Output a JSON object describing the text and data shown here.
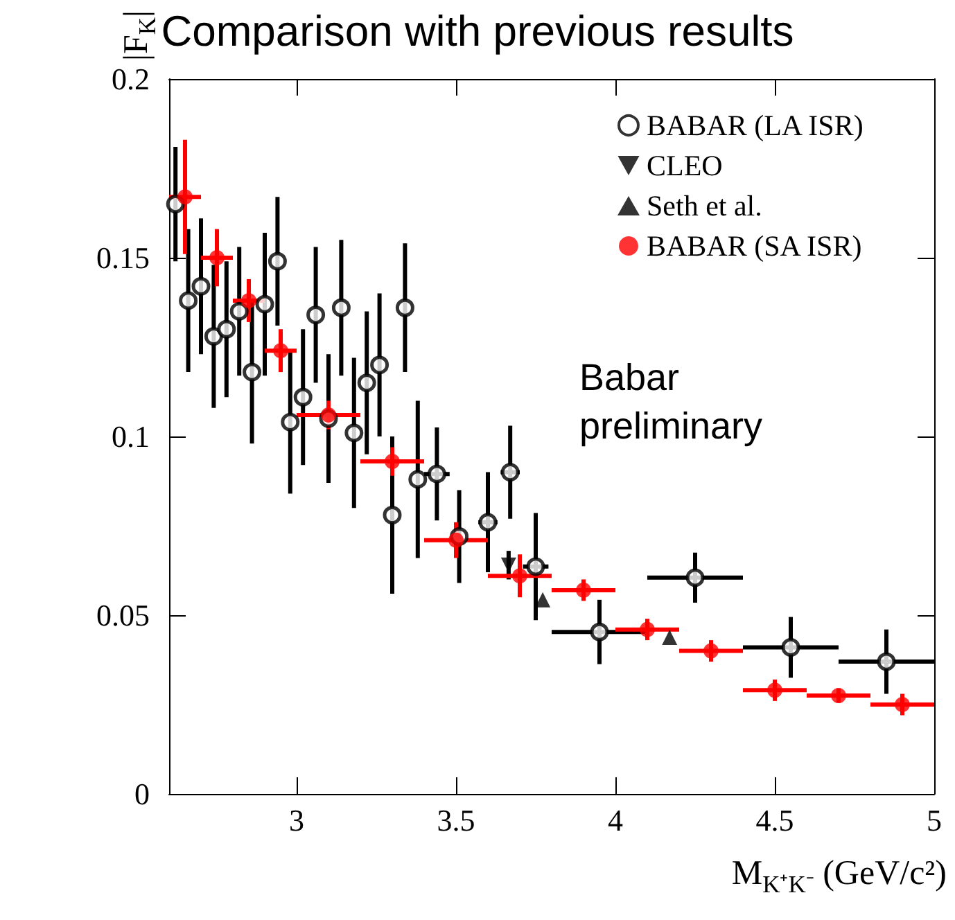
{
  "chart_data": {
    "type": "scatter",
    "title": "Comparison with previous results",
    "xlabel": "M$_{K⁺K⁻}$ (GeV/c²)",
    "ylabel": "|F$_{K}$|",
    "annotations": [
      "Babar preliminary"
    ],
    "xlim": [
      2.6,
      5
    ],
    "xticks": [
      3,
      3.5,
      4,
      4.5,
      5
    ],
    "ylim": [
      0,
      0.2
    ],
    "yticks": [
      0,
      0.05,
      0.1,
      0.15,
      0.2
    ],
    "grid": false,
    "legend": "top right",
    "series": [
      {
        "name": "BABAR (LA ISR)",
        "color": "#000000",
        "marker": "circle-open",
        "x": [
          2.62,
          2.66,
          2.7,
          2.74,
          2.78,
          2.82,
          2.86,
          2.9,
          2.94,
          2.98,
          3.02,
          3.06,
          3.1,
          3.14,
          3.18,
          3.22,
          3.26,
          3.3,
          3.34,
          3.38,
          3.44,
          3.51,
          3.6,
          3.67,
          3.75,
          3.95,
          4.25,
          4.55,
          4.85
        ],
        "values": [
          0.165,
          0.138,
          0.142,
          0.128,
          0.13,
          0.135,
          0.118,
          0.137,
          0.149,
          0.104,
          0.111,
          0.134,
          0.105,
          0.136,
          0.101,
          0.115,
          0.12,
          0.078,
          0.136,
          0.088,
          0.0895,
          0.072,
          0.076,
          0.09,
          0.0636,
          0.0453,
          0.0605,
          0.041,
          0.037
        ],
        "errors": [
          0.016,
          0.02,
          0.019,
          0.02,
          0.019,
          0.018,
          0.02,
          0.02,
          0.018,
          0.02,
          0.019,
          0.019,
          0.018,
          0.019,
          0.021,
          0.02,
          0.02,
          0.022,
          0.018,
          0.022,
          0.013,
          0.013,
          0.014,
          0.013,
          0.015,
          0.009,
          0.007,
          0.0085,
          0.009
        ],
        "xerrors": [
          null,
          null,
          null,
          null,
          null,
          null,
          null,
          null,
          null,
          null,
          null,
          null,
          null,
          null,
          null,
          null,
          null,
          null,
          null,
          null,
          0.04,
          null,
          0.03,
          0.03,
          0.04,
          0.15,
          0.15,
          0.15,
          0.15
        ]
      },
      {
        "name": "CLEO",
        "color": "#000000",
        "marker": "triangle-down",
        "x": [
          3.665
        ],
        "values": [
          0.064
        ],
        "errors": [
          0.004
        ]
      },
      {
        "name": "Seth et al.",
        "color": "#000000",
        "marker": "triangle",
        "x": [
          3.772,
          4.17
        ],
        "values": [
          0.0543,
          0.0438
        ]
      },
      {
        "name": "BABAR (SA ISR)",
        "color": "#ff0000",
        "marker": "circle",
        "x": [
          2.65,
          2.75,
          2.85,
          2.95,
          3.1,
          3.3,
          3.5,
          3.7,
          3.9,
          4.1,
          4.3,
          4.5,
          4.7,
          4.9
        ],
        "values": [
          0.167,
          0.15,
          0.138,
          0.124,
          0.106,
          0.093,
          0.071,
          0.061,
          0.057,
          0.046,
          0.04,
          0.029,
          0.0275,
          0.025
        ],
        "errors": [
          0.016,
          0.008,
          0.006,
          0.006,
          0.004,
          0.004,
          0.005,
          0.006,
          0.003,
          0.003,
          0.003,
          0.003,
          0.002,
          0.003
        ],
        "xerrors": [
          0.05,
          0.05,
          0.05,
          0.05,
          0.1,
          0.1,
          0.1,
          0.1,
          0.1,
          0.1,
          0.1,
          0.1,
          0.1,
          0.1
        ]
      }
    ]
  }
}
